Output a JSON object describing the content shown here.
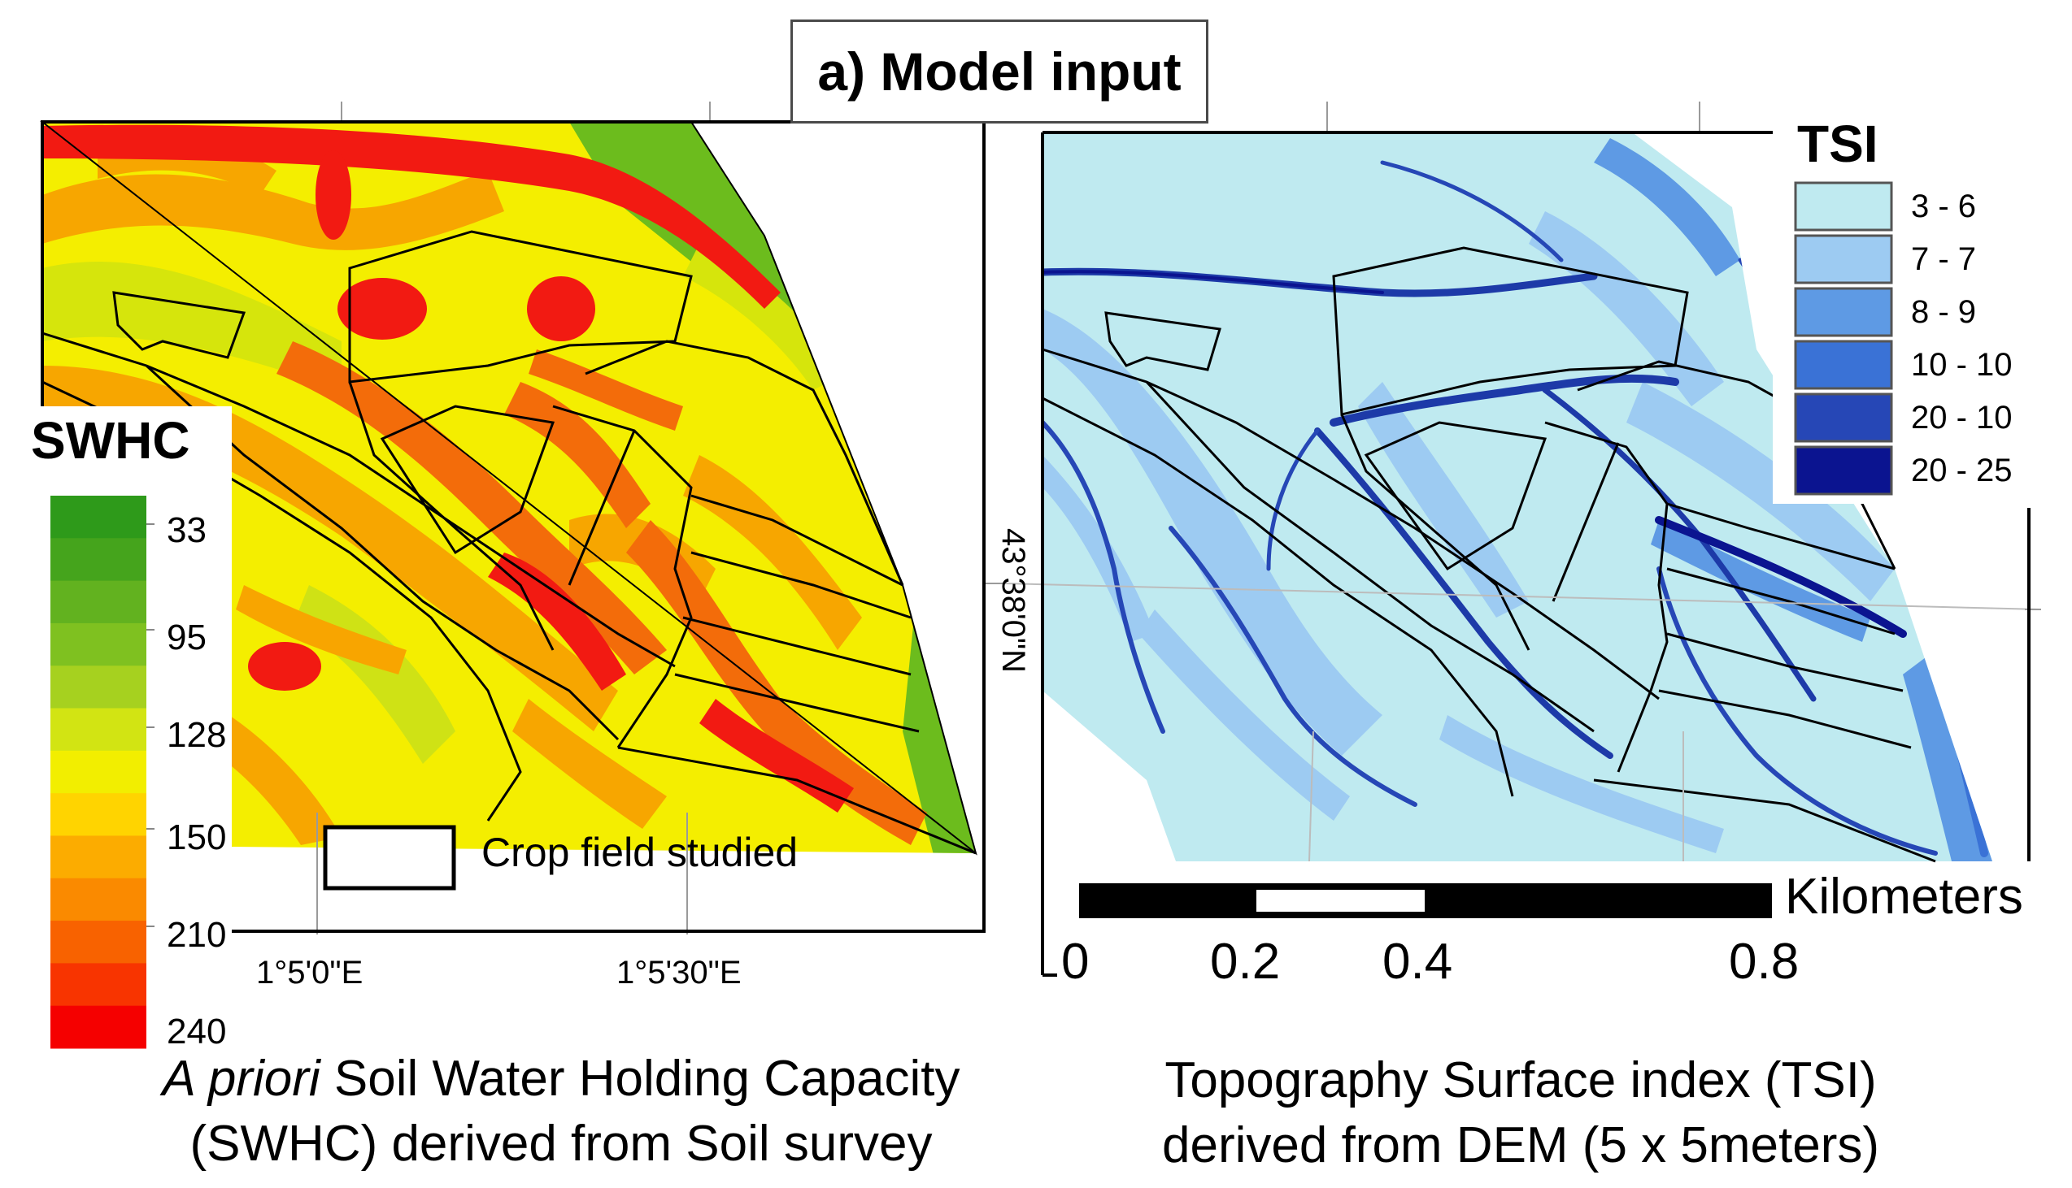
{
  "title": "a) Model input",
  "left_map": {
    "legend_title": "SWHC",
    "legend_labels": [
      "33",
      "95",
      "128",
      "150",
      "210",
      "240"
    ],
    "legend_colors": [
      "#2e9a1a",
      "#45a41c",
      "#62b21f",
      "#7fc120",
      "#a6d11f",
      "#d2e413",
      "#f2ee00",
      "#ffd400",
      "#fcac00",
      "#fa8a00",
      "#f86200",
      "#f83400",
      "#f50000"
    ],
    "colors": {
      "green": "#66bb1e",
      "yellow_green": "#d9e60c",
      "yellow": "#f4ee00",
      "orange": "#f7a600",
      "dark_orange": "#f46e0a",
      "red": "#f21a12"
    },
    "field_legend_label": "Crop field studied",
    "x_labels": [
      "1°5'0\"E",
      "1°5'30\"E"
    ],
    "caption_italic": "A priori",
    "caption_line1": " Soil Water Holding Capacity",
    "caption_line2": "(SWHC) derived from Soil survey"
  },
  "right_map": {
    "legend_title": "TSI",
    "legend_items": [
      {
        "label": "3 - 6",
        "color": "#bfeaf0"
      },
      {
        "label": "7 - 7",
        "color": "#9dcbf2"
      },
      {
        "label": "8 - 9",
        "color": "#5e9ae4"
      },
      {
        "label": "10 - 10",
        "color": "#3a72d6"
      },
      {
        "label": "20 - 10",
        "color": "#2647b6"
      },
      {
        "label": "20 - 25",
        "color": "#0b1490"
      }
    ],
    "y_label": "43°38'0\"N",
    "scale_unit": "Kilometers",
    "scale_ticks": [
      "0",
      "0.2",
      "0.4",
      "0.8"
    ],
    "caption_line1": "Topography Surface index (TSI)",
    "caption_line2": "derived from DEM (5 x 5meters)"
  }
}
